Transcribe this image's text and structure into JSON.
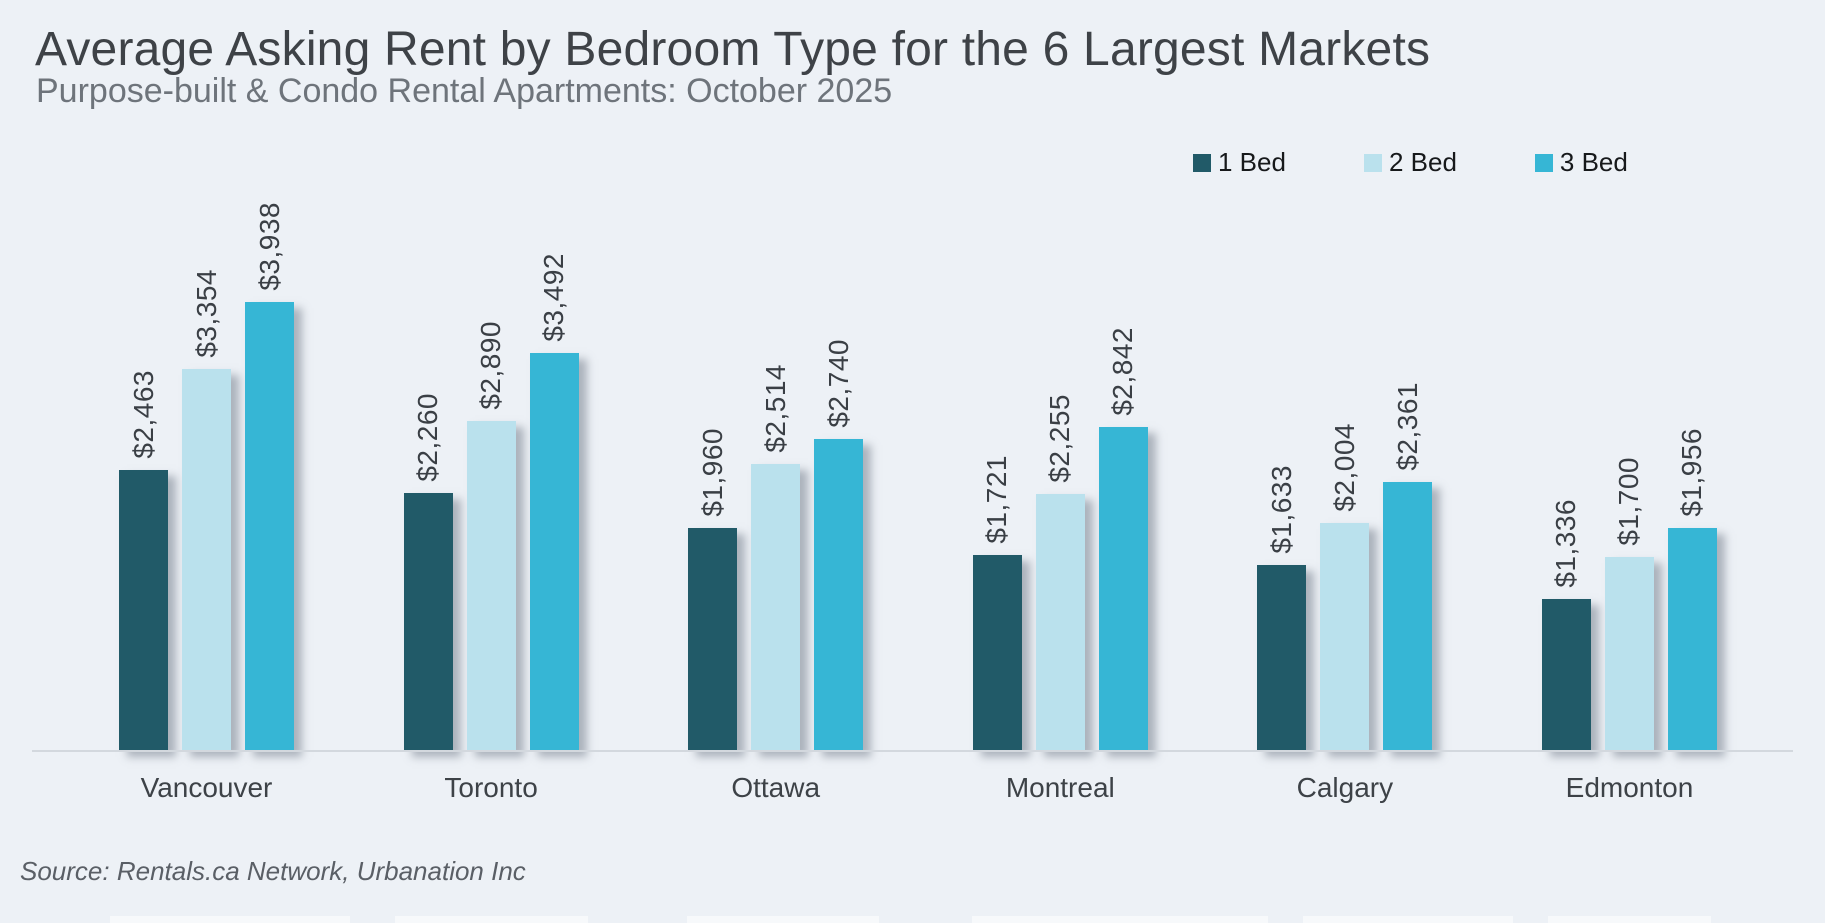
{
  "header": {
    "title": "Average Asking Rent by Bedroom Type for the 6 Largest Markets",
    "subtitle": "Purpose-built & Condo Rental Apartments: October 2025"
  },
  "footer": {
    "source": "Source: Rentals.ca Network, Urbanation Inc"
  },
  "colors": {
    "background": "#edf1f6",
    "bed1": "#215a68",
    "bed2": "#bae1ed",
    "bed3": "#36b6d5",
    "axis_line": "#d3d8de",
    "title_text": "#3e4247",
    "subtitle_text": "#6e747b",
    "value_text": "#3a3f45"
  },
  "legend": {
    "position": "top-right",
    "items": [
      {
        "label": "1 Bed",
        "color": "#215a68"
      },
      {
        "label": "2 Bed",
        "color": "#bae1ed"
      },
      {
        "label": "3 Bed",
        "color": "#36b6d5"
      }
    ]
  },
  "chart_data": {
    "type": "bar",
    "title": "Average Asking Rent by Bedroom Type for the 6 Largest Markets",
    "subtitle": "Purpose-built & Condo Rental Apartments: October 2025",
    "categories": [
      "Vancouver",
      "Toronto",
      "Ottawa",
      "Montreal",
      "Calgary",
      "Edmonton"
    ],
    "series": [
      {
        "name": "1 Bed",
        "color": "#215a68",
        "values": [
          2463,
          2260,
          1960,
          1721,
          1633,
          1336
        ],
        "labels": [
          "$2,463",
          "$2,260",
          "$1,960",
          "$1,721",
          "$1,633",
          "$1,336"
        ]
      },
      {
        "name": "2 Bed",
        "color": "#bae1ed",
        "values": [
          3354,
          2890,
          2514,
          2255,
          2004,
          1700
        ],
        "labels": [
          "$3,354",
          "$2,890",
          "$2,514",
          "$2,255",
          "$2,004",
          "$1,700"
        ]
      },
      {
        "name": "3 Bed",
        "color": "#36b6d5",
        "values": [
          3938,
          3492,
          2740,
          2842,
          2361,
          1956
        ],
        "labels": [
          "$3,938",
          "$3,492",
          "$2,740",
          "$2,842",
          "$2,361",
          "$1,956"
        ]
      }
    ],
    "value_prefix": "$",
    "ylabel": "",
    "xlabel": "",
    "ylim": [
      0,
      3938
    ],
    "grid": false,
    "bar_value_labels_rotated": true,
    "legend_position": "top-right"
  }
}
